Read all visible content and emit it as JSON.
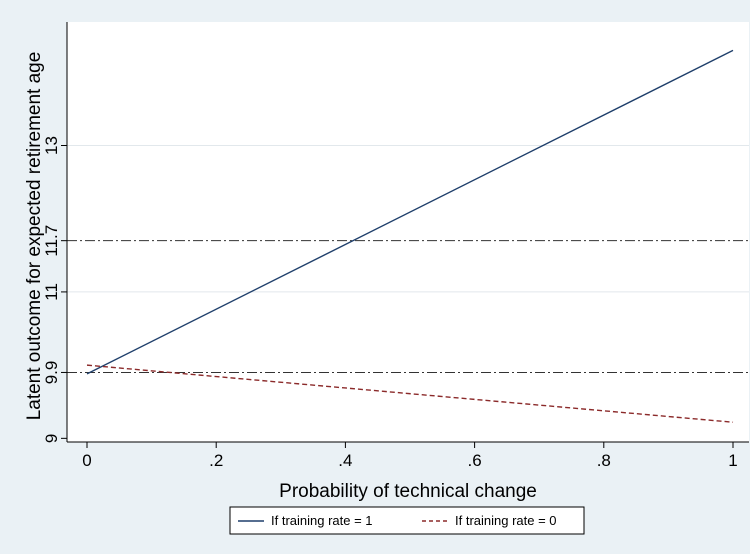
{
  "chart_data": {
    "type": "line",
    "xlabel": "Probability of technical change",
    "ylabel": "Latent outcome for expected retirement age",
    "xlim": [
      0,
      1
    ],
    "ylim": [
      8.95,
      14.4
    ],
    "x_ticks": [
      {
        "value": 0,
        "label": "0"
      },
      {
        "value": 0.2,
        "label": ".2"
      },
      {
        "value": 0.4,
        "label": ".4"
      },
      {
        "value": 0.6,
        "label": ".6"
      },
      {
        "value": 0.8,
        "label": ".8"
      },
      {
        "value": 1,
        "label": "1"
      }
    ],
    "y_ticks": [
      {
        "value": 9,
        "label": "9"
      },
      {
        "value": 9.9,
        "label": "9.9"
      },
      {
        "value": 11,
        "label": "11"
      },
      {
        "value": 11.7,
        "label": "11.7"
      },
      {
        "value": 13,
        "label": "13"
      }
    ],
    "grid": true,
    "gridlines_y": [
      11,
      13
    ],
    "reference_lines_y": [
      9.9,
      11.7
    ],
    "series": [
      {
        "name": "If training rate = 1",
        "color": "#1f3f6b",
        "style": "solid",
        "x": [
          0,
          1
        ],
        "y": [
          9.88,
          14.3
        ]
      },
      {
        "name": "If training rate = 0",
        "color": "#8b2a2a",
        "style": "dashed",
        "x": [
          0,
          1
        ],
        "y": [
          10.0,
          9.22
        ]
      }
    ],
    "legend_position": "bottom"
  }
}
